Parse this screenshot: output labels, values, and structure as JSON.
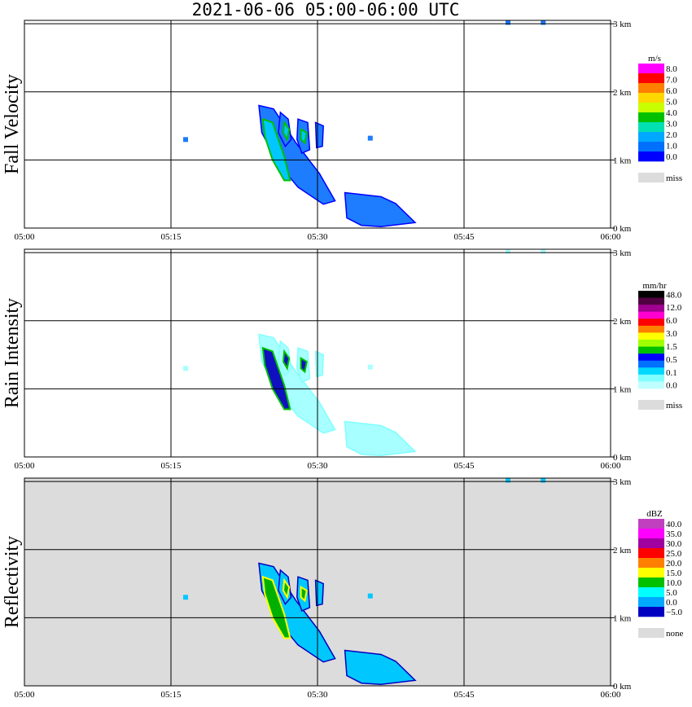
{
  "title": "2021-06-06   05:00-06:00 UTC",
  "x_axis": {
    "ticks": [
      "05:00",
      "05:15",
      "05:30",
      "05:45",
      "06:00"
    ]
  },
  "y_axis": {
    "ticks": [
      "0 km",
      "1 km",
      "2 km",
      "3 km"
    ]
  },
  "chart_data": [
    {
      "type": "heatmap",
      "title": "Fall Velocity",
      "ylabel": "Fall Velocity",
      "xlim_minutes": [
        0,
        60
      ],
      "ylim_km": [
        0,
        3.05
      ],
      "grid": true,
      "background": "#ffffff",
      "legend": {
        "unit": "m/s",
        "labels": [
          "8.0",
          "7.0",
          "6.0",
          "5.0",
          "4.0",
          "3.0",
          "2.0",
          "1.0",
          "0.0"
        ],
        "colors": [
          "#ff00ff",
          "#ff0000",
          "#ff8000",
          "#ffd700",
          "#c8ff00",
          "#00c000",
          "#00e0b0",
          "#00a8ff",
          "#0070ff",
          "#0000ff"
        ],
        "miss_label": "miss",
        "miss_color": "#dcdcdc"
      }
    },
    {
      "type": "heatmap",
      "title": "Rain Intensity",
      "ylabel": "Rain Intensity",
      "xlim_minutes": [
        0,
        60
      ],
      "ylim_km": [
        0,
        3.05
      ],
      "grid": true,
      "background": "#ffffff",
      "legend": {
        "unit": "mm/hr",
        "labels": [
          "48.0",
          "12.0",
          "6.0",
          "3.0",
          "1.5",
          "0.5",
          "0.1",
          "0.0"
        ],
        "colors": [
          "#000000",
          "#500040",
          "#a00090",
          "#ff00d0",
          "#ff0000",
          "#ff8000",
          "#ffff00",
          "#a0ff00",
          "#00c000",
          "#0000ff",
          "#0070ff",
          "#00d8ff",
          "#80ffff",
          "#c0ffff"
        ],
        "miss_label": "miss",
        "miss_color": "#dcdcdc"
      }
    },
    {
      "type": "heatmap",
      "title": "Reflectivity",
      "ylabel": "Reflectivity",
      "xlim_minutes": [
        0,
        60
      ],
      "ylim_km": [
        0,
        3.05
      ],
      "grid": true,
      "background": "#dcdcdc",
      "legend": {
        "unit": "dBZ",
        "labels": [
          "40.0",
          "35.0",
          "30.0",
          "25.0",
          "20.0",
          "15.0",
          "10.0",
          "5.0",
          "0.0",
          "−5.0"
        ],
        "colors": [
          "#c040c0",
          "#ff00ff",
          "#a000a0",
          "#ff0000",
          "#ff8000",
          "#ffff00",
          "#00c000",
          "#00ffff",
          "#00a8ff",
          "#0000c0"
        ],
        "miss_label": "none",
        "miss_color": "#dcdcdc"
      }
    }
  ]
}
